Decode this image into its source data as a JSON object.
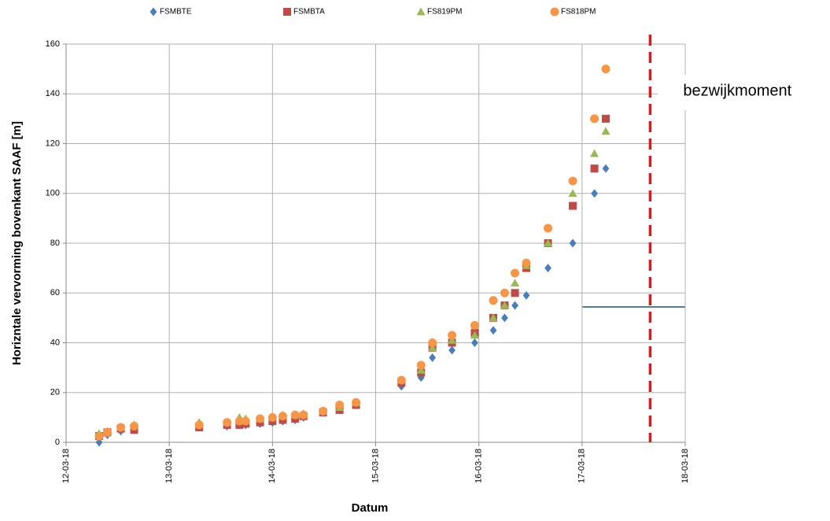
{
  "chart_data": {
    "type": "scatter",
    "x_label": "Datum",
    "y_label": "Horizntale vervorming bovenkant SAAF [m]",
    "x": [
      43171.32,
      43171.4,
      43171.53,
      43171.66,
      43172.29,
      43172.56,
      43172.68,
      43172.74,
      43172.88,
      43173.0,
      43173.1,
      43173.22,
      43173.3,
      43173.49,
      43173.65,
      43173.81,
      43174.25,
      43174.44,
      43174.55,
      43174.74,
      43174.96,
      43175.14,
      43175.25,
      43175.35,
      43175.46,
      43175.67,
      43175.91,
      43176.12,
      43176.23
    ],
    "series": [
      {
        "name": "FSMBTE",
        "color": "#4a7ebb",
        "marker": "diamond",
        "values": [
          0,
          3,
          4.5,
          5,
          6,
          6.5,
          7,
          7,
          7.5,
          8,
          8.5,
          9,
          10,
          12,
          13,
          15,
          22.5,
          26,
          34,
          37,
          40,
          45,
          50,
          55,
          59,
          70,
          80,
          100,
          110
        ]
      },
      {
        "name": "FSMBTA",
        "color": "#be4b48",
        "marker": "square",
        "values": [
          2.5,
          4,
          5.5,
          5,
          6,
          7,
          7,
          7.5,
          8,
          8.5,
          9,
          9.5,
          10.5,
          12,
          13,
          15,
          24,
          28,
          38,
          40,
          44,
          50,
          55,
          60,
          70,
          80,
          95,
          110,
          130
        ]
      },
      {
        "name": "FS819PM",
        "color": "#98b954",
        "marker": "triangle",
        "values": [
          3.5,
          4.5,
          6,
          7,
          8,
          8,
          10,
          9.5,
          9.5,
          10,
          11,
          11,
          11.5,
          12.5,
          14,
          16,
          25,
          29,
          38,
          41,
          43,
          50,
          55,
          64,
          71,
          80,
          100,
          116,
          125
        ]
      },
      {
        "name": "FS818PM",
        "color": "#f79646",
        "marker": "circle",
        "values": [
          2.5,
          4,
          6,
          6.5,
          7,
          8,
          8.5,
          8.5,
          9.5,
          10,
          10.5,
          11,
          11,
          12.5,
          15,
          16,
          25,
          31,
          40,
          43,
          47,
          57,
          60,
          68,
          72,
          86,
          105,
          130,
          150
        ]
      }
    ],
    "xlim": [
      43171,
      43177
    ],
    "xticks": [
      {
        "value": 43171,
        "label": "12-03-18"
      },
      {
        "value": 43172,
        "label": "13-03-18"
      },
      {
        "value": 43173,
        "label": "14-03-18"
      },
      {
        "value": 43174,
        "label": "15-03-18"
      },
      {
        "value": 43175,
        "label": "16-03-18"
      },
      {
        "value": 43176,
        "label": "17-03-18"
      },
      {
        "value": 43177,
        "label": "18-03-18"
      }
    ],
    "ylim": [
      0,
      160
    ],
    "yticks": [
      0,
      20,
      40,
      60,
      80,
      100,
      120,
      140,
      160
    ],
    "grid": true,
    "legend": "top",
    "annotations": [
      {
        "x": 43176.66,
        "label": "bezwijkmoment",
        "color": "#e8141b"
      }
    ]
  }
}
